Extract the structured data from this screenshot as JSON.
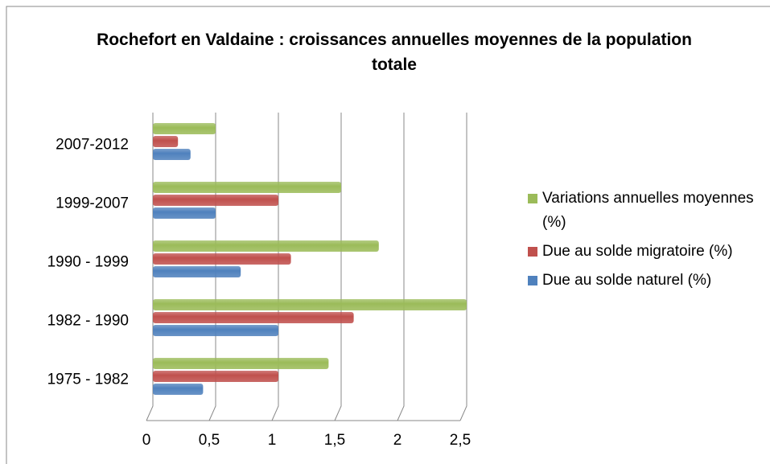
{
  "chart_data": {
    "type": "bar",
    "orientation": "horizontal",
    "title": "Rochefort en Valdaine : croissances annuelles moyennes de la population totale",
    "categories": [
      "1975 - 1982",
      "1982 - 1990",
      "1990 - 1999",
      "1999-2007",
      "2007-2012"
    ],
    "series": [
      {
        "name": "Due au solde naturel (%)",
        "color": "#4f81bd",
        "values": [
          0.4,
          1.0,
          0.7,
          0.5,
          0.3
        ]
      },
      {
        "name": "Due au solde migratoire (%)",
        "color": "#c0504d",
        "values": [
          1.0,
          1.6,
          1.1,
          1.0,
          0.2
        ]
      },
      {
        "name": "Variations annuelles moyennes (%)",
        "color": "#9bbb59",
        "values": [
          1.4,
          2.5,
          1.8,
          1.5,
          0.5
        ]
      }
    ],
    "xlim": [
      0,
      2.5
    ],
    "xticks": [
      0,
      {
        "value": 0.5,
        "label": "0,5"
      },
      1,
      {
        "value": 1.5,
        "label": "1,5"
      },
      2,
      {
        "value": 2.5,
        "label": "2,5"
      }
    ],
    "grid": true,
    "legend": "right"
  }
}
